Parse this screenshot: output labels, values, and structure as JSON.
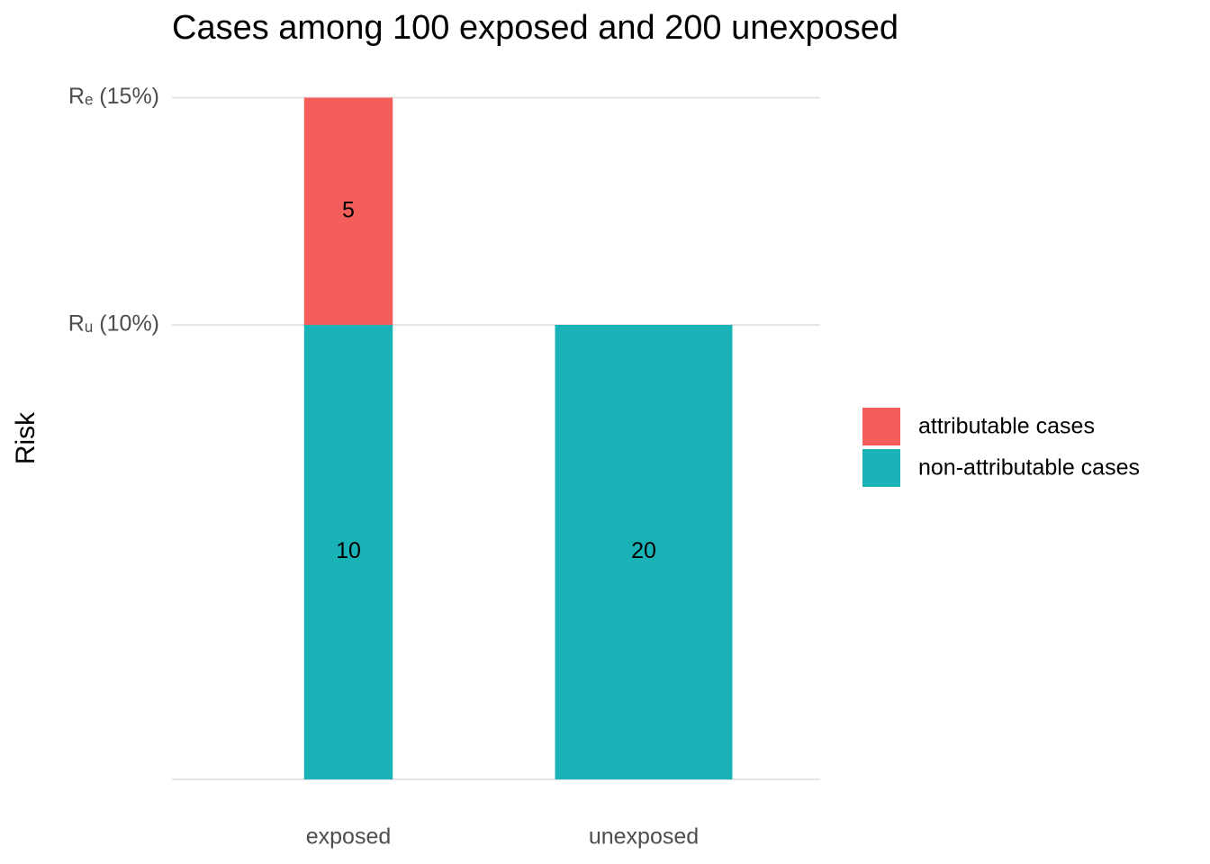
{
  "chart_data": {
    "type": "bar",
    "stacked": true,
    "title": "Cases among 100 exposed and 200 unexposed",
    "y_label": "Risk",
    "categories": [
      "exposed",
      "unexposed"
    ],
    "widths": [
      100,
      200
    ],
    "series": [
      {
        "name": "attributable cases",
        "color": "#F35E5A",
        "values": [
          5,
          null
        ],
        "cases": [
          5,
          null
        ]
      },
      {
        "name": "non-attributable cases",
        "color": "#19B3B7",
        "values": [
          10,
          10
        ],
        "cases": [
          10,
          20
        ]
      }
    ],
    "ylim": [
      0,
      15
    ],
    "yticks": [
      {
        "value": 10,
        "label": "Rᵤ (10%)"
      },
      {
        "value": 15,
        "label": "Rₑ (15%)"
      }
    ],
    "grid": true
  }
}
